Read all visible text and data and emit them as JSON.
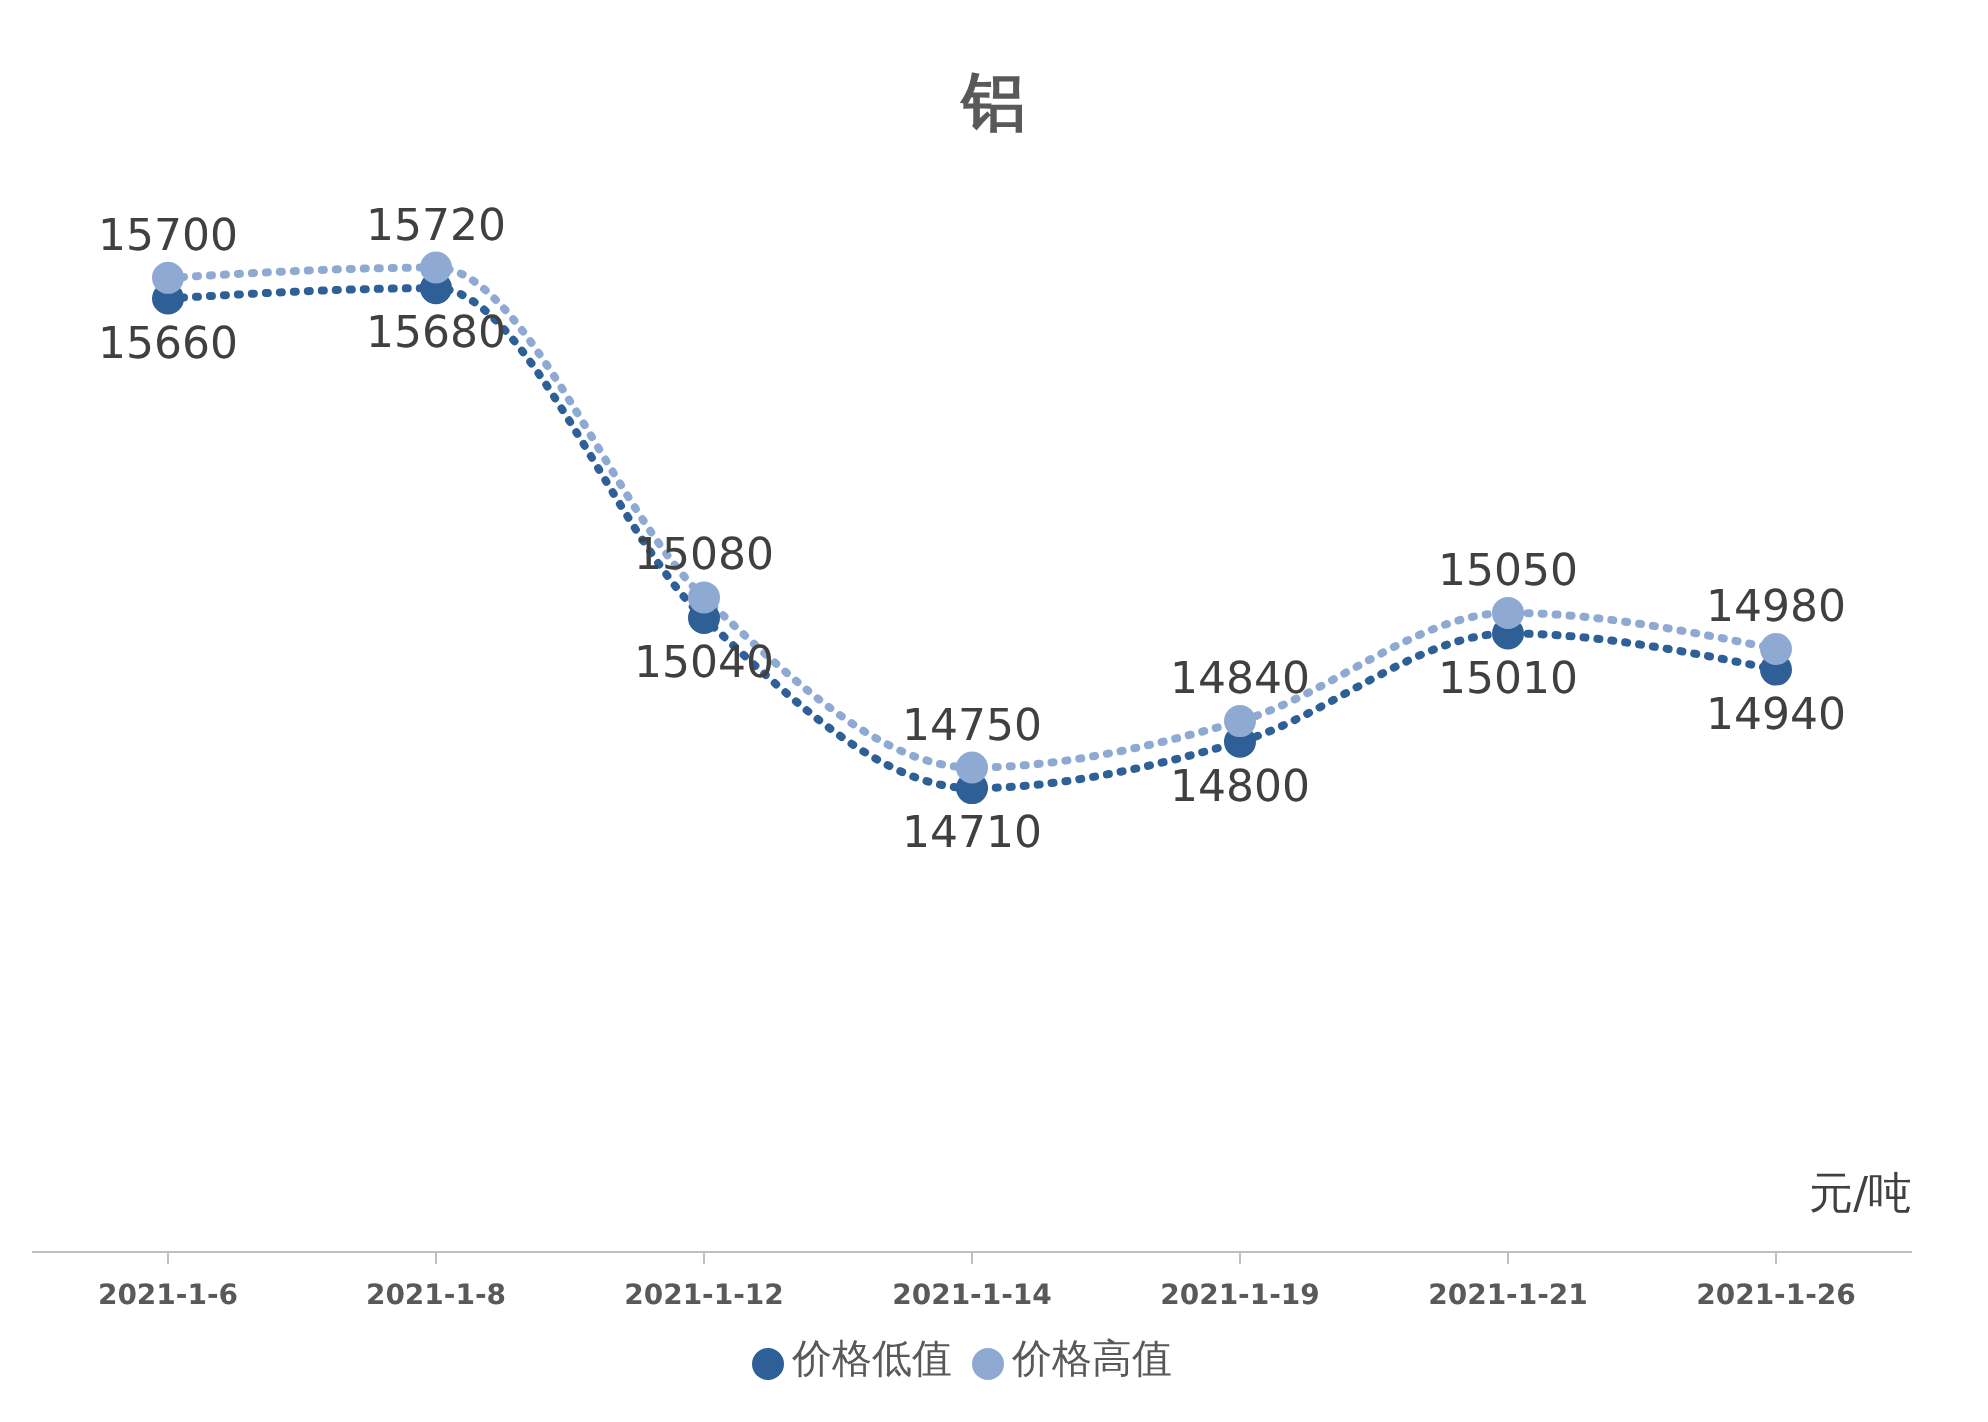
{
  "chart_data": {
    "type": "line",
    "title": "铝",
    "categories": [
      "2021-1-6",
      "2021-1-8",
      "2021-1-12",
      "2021-1-14",
      "2021-1-19",
      "2021-1-21",
      "2021-1-26"
    ],
    "series": [
      {
        "name": "价格低值",
        "color": "#2e5f96",
        "values": [
          15660,
          15680,
          15040,
          14710,
          14800,
          15010,
          14940
        ]
      },
      {
        "name": "价格高值",
        "color": "#8faad2",
        "values": [
          15700,
          15720,
          15080,
          14750,
          14840,
          15050,
          14980
        ]
      }
    ],
    "tick_labels": "x",
    "data_labels": true,
    "legend": "bottom",
    "grid": false,
    "marker": "circle",
    "line_style": "dotted",
    "annotations": [
      "元/吨"
    ]
  }
}
